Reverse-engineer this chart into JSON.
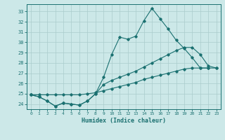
{
  "title": "",
  "xlabel": "Humidex (Indice chaleur)",
  "background_color": "#cce8e8",
  "grid_color": "#aacccc",
  "line_color": "#1a7070",
  "xlim": [
    -0.5,
    23.5
  ],
  "ylim": [
    23.5,
    33.7
  ],
  "yticks": [
    24,
    25,
    26,
    27,
    28,
    29,
    30,
    31,
    32,
    33
  ],
  "xticks": [
    0,
    1,
    2,
    3,
    4,
    5,
    6,
    7,
    8,
    9,
    10,
    11,
    12,
    13,
    14,
    15,
    16,
    17,
    18,
    19,
    20,
    21,
    22,
    23
  ],
  "line1_x": [
    0,
    1,
    2,
    3,
    4,
    5,
    6,
    7,
    8,
    9,
    10,
    11,
    12,
    13,
    14,
    15,
    16,
    17,
    18,
    19,
    20,
    21,
    22
  ],
  "line1_y": [
    24.9,
    24.7,
    24.3,
    23.8,
    24.1,
    24.0,
    23.9,
    24.3,
    25.0,
    26.6,
    28.8,
    30.5,
    30.3,
    30.6,
    32.1,
    33.3,
    32.3,
    31.3,
    30.2,
    29.4,
    28.5,
    27.5,
    27.5
  ],
  "line2_x": [
    0,
    1,
    2,
    3,
    4,
    5,
    6,
    7,
    8,
    9,
    10,
    11,
    12,
    13,
    14,
    15,
    16,
    17,
    18,
    19,
    20,
    21,
    22,
    23
  ],
  "line2_y": [
    24.9,
    24.7,
    24.3,
    23.8,
    24.1,
    24.0,
    23.9,
    24.3,
    25.0,
    25.9,
    26.3,
    26.6,
    26.9,
    27.2,
    27.6,
    28.0,
    28.4,
    28.8,
    29.2,
    29.5,
    29.5,
    28.8,
    27.7,
    27.5
  ],
  "line3_x": [
    0,
    1,
    2,
    3,
    4,
    5,
    6,
    7,
    8,
    9,
    10,
    11,
    12,
    13,
    14,
    15,
    16,
    17,
    18,
    19,
    20,
    21,
    22,
    23
  ],
  "line3_y": [
    24.9,
    24.9,
    24.9,
    24.9,
    24.9,
    24.9,
    24.9,
    25.0,
    25.1,
    25.3,
    25.5,
    25.7,
    25.9,
    26.1,
    26.4,
    26.6,
    26.8,
    27.0,
    27.2,
    27.4,
    27.5,
    27.5,
    27.5,
    27.5
  ]
}
